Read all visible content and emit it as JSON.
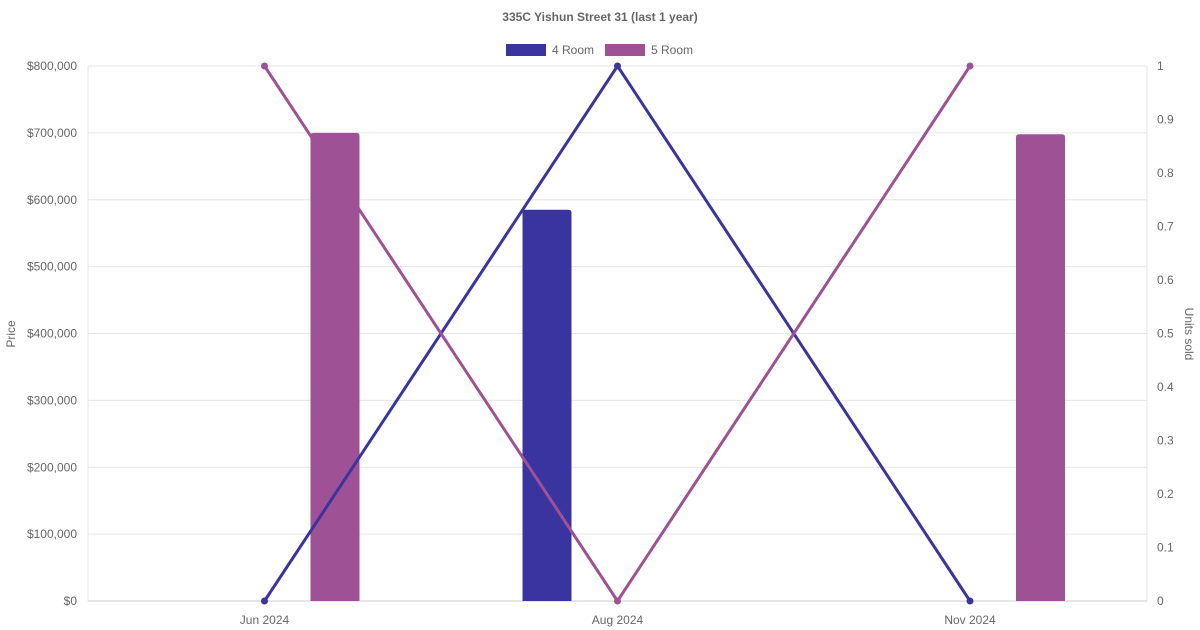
{
  "chart_data": {
    "type": "bar",
    "title": "335C Yishun Street 31 (last 1 year)",
    "categories": [
      "Jun 2024",
      "Aug 2024",
      "Nov 2024"
    ],
    "legend_position": "top-center",
    "grid": true,
    "y_left": {
      "label": "Price",
      "range": [
        0,
        800000
      ],
      "ticks": [
        "$0",
        "$100,000",
        "$200,000",
        "$300,000",
        "$400,000",
        "$500,000",
        "$600,000",
        "$700,000",
        "$800,000"
      ]
    },
    "y_right": {
      "label": "Units sold",
      "range": [
        0,
        1
      ],
      "ticks": [
        "0",
        "0.1",
        "0.2",
        "0.3",
        "0.4",
        "0.5",
        "0.6",
        "0.7",
        "0.8",
        "0.9",
        "1"
      ]
    },
    "series": [
      {
        "name": "4 Room",
        "color": "#3a34a0",
        "bar_values": [
          null,
          585000,
          null
        ],
        "units_sold": [
          0,
          1,
          0
        ]
      },
      {
        "name": "5 Room",
        "color": "#9e5194",
        "bar_values": [
          700000,
          null,
          698000
        ],
        "units_sold": [
          1,
          0,
          1
        ]
      }
    ]
  }
}
